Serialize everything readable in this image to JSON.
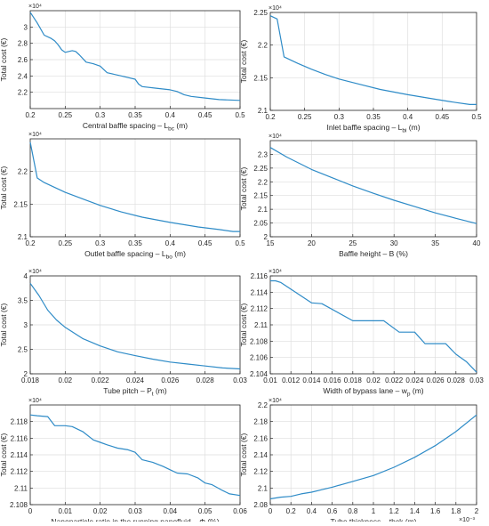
{
  "chart_data": [
    {
      "type": "line",
      "xlabel": "Central baffle spacing – L",
      "xlabel_sub": "bc",
      "xlabel_unit": " (m)",
      "ylabel": "Total cost (€)",
      "y_exponent": "×10⁴",
      "xlim": [
        0.2,
        0.5
      ],
      "ylim": [
        2.0,
        3.2
      ],
      "xticks": [
        0.2,
        0.25,
        0.3,
        0.35,
        0.4,
        0.45,
        0.5
      ],
      "xtick_labels": [
        "0.2",
        "0.25",
        "0.3",
        "0.35",
        "0.4",
        "0.45",
        "0.5"
      ],
      "yticks": [
        2.2,
        2.4,
        2.6,
        2.8,
        3.0
      ],
      "ytick_labels": [
        "2.2",
        "2.4",
        "2.6",
        "2.8",
        "3"
      ],
      "grid": true,
      "x": [
        0.2,
        0.21,
        0.22,
        0.23,
        0.235,
        0.24,
        0.245,
        0.25,
        0.26,
        0.265,
        0.27,
        0.28,
        0.29,
        0.3,
        0.31,
        0.33,
        0.35,
        0.355,
        0.36,
        0.38,
        0.4,
        0.41,
        0.42,
        0.43,
        0.45,
        0.47,
        0.5
      ],
      "y": [
        3.18,
        3.05,
        2.9,
        2.86,
        2.83,
        2.78,
        2.72,
        2.69,
        2.71,
        2.7,
        2.66,
        2.57,
        2.55,
        2.52,
        2.44,
        2.4,
        2.36,
        2.3,
        2.27,
        2.25,
        2.23,
        2.21,
        2.17,
        2.15,
        2.13,
        2.11,
        2.1
      ]
    },
    {
      "type": "line",
      "xlabel": "Inlet baffle spacing – L",
      "xlabel_sub": "bi",
      "xlabel_unit": " (m)",
      "ylabel": "Total cost (€)",
      "y_exponent": "×10⁴",
      "xlim": [
        0.2,
        0.5
      ],
      "ylim": [
        2.1,
        2.25
      ],
      "xticks": [
        0.2,
        0.25,
        0.3,
        0.35,
        0.4,
        0.45,
        0.5
      ],
      "xtick_labels": [
        "0.2",
        "0.25",
        "0.3",
        "0.35",
        "0.4",
        "0.45",
        "0.5"
      ],
      "yticks": [
        2.1,
        2.15,
        2.2,
        2.25
      ],
      "ytick_labels": [
        "2.1",
        "2.15",
        "2.2",
        "2.25"
      ],
      "grid": true,
      "x": [
        0.2,
        0.21,
        0.22,
        0.24,
        0.26,
        0.28,
        0.3,
        0.33,
        0.36,
        0.4,
        0.44,
        0.47,
        0.49,
        0.5
      ],
      "y": [
        2.245,
        2.24,
        2.182,
        2.172,
        2.163,
        2.155,
        2.148,
        2.14,
        2.132,
        2.124,
        2.117,
        2.112,
        2.109,
        2.109
      ]
    },
    {
      "type": "line",
      "xlabel": "Outlet baffle spacing – L",
      "xlabel_sub": "bo",
      "xlabel_unit": " (m)",
      "ylabel": "Total cost (€)",
      "y_exponent": "×10⁴",
      "xlim": [
        0.2,
        0.5
      ],
      "ylim": [
        2.1,
        2.25
      ],
      "xticks": [
        0.2,
        0.25,
        0.3,
        0.35,
        0.4,
        0.45,
        0.5
      ],
      "xtick_labels": [
        "0.2",
        "0.25",
        "0.3",
        "0.35",
        "0.4",
        "0.45",
        "0.5"
      ],
      "yticks": [
        2.1,
        2.15,
        2.2
      ],
      "ytick_labels": [
        "2.1",
        "2.15",
        "2.2"
      ],
      "grid": true,
      "x": [
        0.2,
        0.21,
        0.22,
        0.25,
        0.28,
        0.3,
        0.33,
        0.36,
        0.4,
        0.44,
        0.47,
        0.49,
        0.5
      ],
      "y": [
        2.245,
        2.19,
        2.183,
        2.168,
        2.156,
        2.148,
        2.138,
        2.13,
        2.122,
        2.115,
        2.111,
        2.108,
        2.108
      ]
    },
    {
      "type": "line",
      "xlabel": "Baffle height – B (%)",
      "ylabel": "Total cost (€)",
      "y_exponent": "×10⁴",
      "xlim": [
        15,
        40
      ],
      "ylim": [
        2.0,
        2.35
      ],
      "xticks": [
        15,
        20,
        25,
        30,
        35,
        40
      ],
      "xtick_labels": [
        "15",
        "20",
        "25",
        "30",
        "35",
        "40"
      ],
      "yticks": [
        2.0,
        2.05,
        2.1,
        2.15,
        2.2,
        2.25,
        2.3
      ],
      "ytick_labels": [
        "2",
        "2.05",
        "2.1",
        "2.15",
        "2.2",
        "2.25",
        "2.3"
      ],
      "grid": true,
      "x": [
        15,
        17,
        20,
        22.5,
        25,
        27.5,
        30,
        32.5,
        35,
        37.5,
        40
      ],
      "y": [
        2.325,
        2.29,
        2.245,
        2.215,
        2.185,
        2.158,
        2.133,
        2.11,
        2.087,
        2.067,
        2.048
      ]
    },
    {
      "type": "line",
      "xlabel": "Tube pitch – P",
      "xlabel_sub": "t",
      "xlabel_unit": " (m)",
      "ylabel": "Total cost (€)",
      "y_exponent": "×10⁴",
      "xlim": [
        0.018,
        0.03
      ],
      "ylim": [
        2.0,
        4.0
      ],
      "xticks": [
        0.018,
        0.02,
        0.022,
        0.024,
        0.026,
        0.028,
        0.03
      ],
      "xtick_labels": [
        "0.018",
        "0.02",
        "0.022",
        "0.024",
        "0.026",
        "0.028",
        "0.03"
      ],
      "yticks": [
        2.0,
        2.5,
        3.0,
        3.5,
        4.0
      ],
      "ytick_labels": [
        "2",
        "2.5",
        "3",
        "3.5",
        "4"
      ],
      "grid": true,
      "x": [
        0.018,
        0.0185,
        0.019,
        0.0195,
        0.02,
        0.021,
        0.022,
        0.023,
        0.024,
        0.025,
        0.026,
        0.027,
        0.028,
        0.029,
        0.03
      ],
      "y": [
        3.85,
        3.6,
        3.3,
        3.1,
        2.95,
        2.72,
        2.57,
        2.45,
        2.37,
        2.3,
        2.24,
        2.2,
        2.16,
        2.12,
        2.1
      ]
    },
    {
      "type": "line",
      "xlabel": "Width of bypass lane – w",
      "xlabel_sub": "p",
      "xlabel_unit": " (m)",
      "ylabel": "Total cost (€)",
      "y_exponent": "×10⁴",
      "xlim": [
        0.01,
        0.03
      ],
      "ylim": [
        2.104,
        2.116
      ],
      "xticks": [
        0.01,
        0.012,
        0.014,
        0.016,
        0.018,
        0.02,
        0.022,
        0.024,
        0.026,
        0.028,
        0.03
      ],
      "xtick_labels": [
        "0.01",
        "0.012",
        "0.014",
        "0.016",
        "0.018",
        "0.02",
        "0.022",
        "0.024",
        "0.026",
        "0.028",
        "0.03"
      ],
      "yticks": [
        2.104,
        2.106,
        2.108,
        2.11,
        2.112,
        2.114,
        2.116
      ],
      "ytick_labels": [
        "2.104",
        "2.106",
        "2.108",
        "2.11",
        "2.112",
        "2.114",
        "2.116"
      ],
      "grid": true,
      "x": [
        0.01,
        0.0105,
        0.011,
        0.014,
        0.015,
        0.018,
        0.02,
        0.021,
        0.0225,
        0.024,
        0.025,
        0.026,
        0.027,
        0.028,
        0.029,
        0.03
      ],
      "y": [
        2.1154,
        2.1154,
        2.1152,
        2.1127,
        2.1126,
        2.1105,
        2.1105,
        2.1105,
        2.1091,
        2.1091,
        2.1077,
        2.1077,
        2.1077,
        2.1064,
        2.1055,
        2.1042
      ]
    },
    {
      "type": "line",
      "xlabel": "Nanoparticle ratio in the running nanofluid – Φ (%)",
      "ylabel": "Total cost (€)",
      "y_exponent": "×10⁴",
      "xlim": [
        0,
        0.06
      ],
      "ylim": [
        2.108,
        2.12
      ],
      "xticks": [
        0,
        0.01,
        0.02,
        0.03,
        0.04,
        0.05,
        0.06
      ],
      "xtick_labels": [
        "0",
        "0.01",
        "0.02",
        "0.03",
        "0.04",
        "0.05",
        "0.06"
      ],
      "yticks": [
        2.108,
        2.11,
        2.112,
        2.114,
        2.116,
        2.118
      ],
      "ytick_labels": [
        "2.108",
        "2.11",
        "2.112",
        "2.114",
        "2.116",
        "2.118"
      ],
      "grid": true,
      "x": [
        0,
        0.002,
        0.005,
        0.007,
        0.01,
        0.012,
        0.015,
        0.018,
        0.02,
        0.022,
        0.025,
        0.028,
        0.03,
        0.032,
        0.035,
        0.038,
        0.04,
        0.042,
        0.045,
        0.048,
        0.05,
        0.052,
        0.055,
        0.057,
        0.06
      ],
      "y": [
        2.1188,
        2.1187,
        2.1186,
        2.1175,
        2.1175,
        2.1174,
        2.1168,
        2.1158,
        2.1155,
        2.1152,
        2.1148,
        2.1146,
        2.1143,
        2.1134,
        2.1131,
        2.1126,
        2.1122,
        2.1118,
        2.1117,
        2.1112,
        2.1106,
        2.1104,
        2.1097,
        2.1093,
        2.1091
      ]
    },
    {
      "type": "line",
      "xlabel": "Tube thickness – thck (m)",
      "ylabel": "Total cost (€)",
      "y_exponent": "×10⁴",
      "x_exponent": "×10⁻³",
      "xlim": [
        0,
        2
      ],
      "ylim": [
        2.08,
        2.2
      ],
      "xticks": [
        0,
        0.2,
        0.4,
        0.6,
        0.8,
        1.0,
        1.2,
        1.4,
        1.6,
        1.8,
        2.0
      ],
      "xtick_labels": [
        "0",
        "0.2",
        "0.4",
        "0.6",
        "0.8",
        "1",
        "1.2",
        "1.4",
        "1.6",
        "1.8",
        "2"
      ],
      "yticks": [
        2.08,
        2.1,
        2.12,
        2.14,
        2.16,
        2.18,
        2.2
      ],
      "ytick_labels": [
        "2.08",
        "2.1",
        "2.12",
        "2.14",
        "2.16",
        "2.18",
        "2.2"
      ],
      "grid": true,
      "x": [
        0,
        0.1,
        0.2,
        0.3,
        0.4,
        0.5,
        0.6,
        0.8,
        1.0,
        1.2,
        1.4,
        1.6,
        1.8,
        2.0
      ],
      "y": [
        2.087,
        2.089,
        2.09,
        2.093,
        2.095,
        2.098,
        2.101,
        2.108,
        2.115,
        2.125,
        2.137,
        2.151,
        2.168,
        2.188
      ]
    }
  ],
  "colors": {
    "line": "#2e8bc7",
    "grid": "#dedede",
    "axis": "#262626"
  }
}
